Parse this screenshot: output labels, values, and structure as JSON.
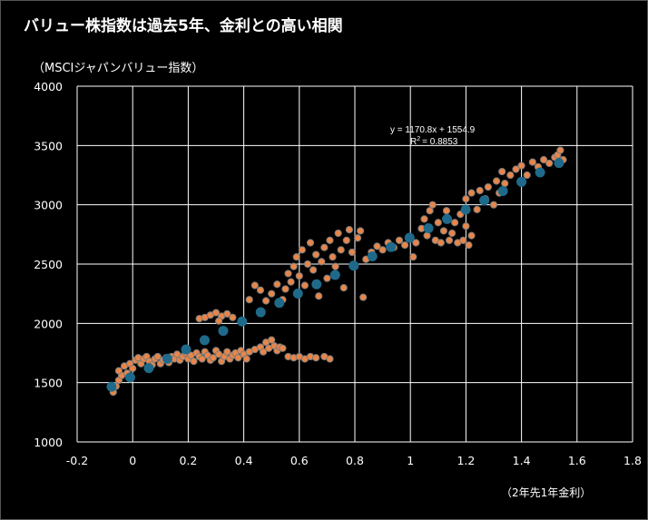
{
  "chart_data": {
    "type": "scatter",
    "title": "バリュー株指数は過去5年、金利との高い相関",
    "ylabel": "（MSCIジャパンバリュー指数）",
    "xlabel": "（2年先1年金利）",
    "xlim": [
      -0.2,
      1.8
    ],
    "ylim": [
      1000,
      4000
    ],
    "xticks": [
      "-0.2",
      "0",
      "0.2",
      "0.4",
      "0.6",
      "0.8",
      "1",
      "1.2",
      "1.4",
      "1.6",
      "1.8"
    ],
    "yticks": [
      "1000",
      "1500",
      "2000",
      "2500",
      "3000",
      "3500",
      "4000"
    ],
    "grid": true,
    "trendline": {
      "equation": "y = 1170.8x + 1554.9",
      "r2_label": "R",
      "r2_value": "= 0.8853",
      "slope": 1170.8,
      "intercept": 1554.9
    },
    "colors": {
      "observed": "#e8864a",
      "observed_edge": "#7a7a7a",
      "fitted": "#1f6a8a",
      "grid": "#ffffff"
    },
    "series": [
      {
        "kind": "observed",
        "points": [
          [
            -0.07,
            1420
          ],
          [
            -0.06,
            1470
          ],
          [
            -0.05,
            1520
          ],
          [
            -0.04,
            1560
          ],
          [
            -0.05,
            1600
          ],
          [
            -0.03,
            1640
          ],
          [
            -0.02,
            1580
          ],
          [
            -0.01,
            1660
          ],
          [
            0.0,
            1620
          ],
          [
            0.01,
            1690
          ],
          [
            0.02,
            1710
          ],
          [
            0.03,
            1660
          ],
          [
            0.04,
            1700
          ],
          [
            0.05,
            1720
          ],
          [
            0.06,
            1680
          ],
          [
            0.07,
            1650
          ],
          [
            0.08,
            1700
          ],
          [
            0.09,
            1720
          ],
          [
            0.1,
            1660
          ],
          [
            0.11,
            1690
          ],
          [
            0.12,
            1710
          ],
          [
            0.13,
            1670
          ],
          [
            0.14,
            1720
          ],
          [
            0.15,
            1700
          ],
          [
            0.16,
            1740
          ],
          [
            0.17,
            1690
          ],
          [
            0.18,
            1720
          ],
          [
            0.19,
            1750
          ],
          [
            0.2,
            1700
          ],
          [
            0.21,
            1730
          ],
          [
            0.22,
            1680
          ],
          [
            0.23,
            1750
          ],
          [
            0.24,
            1720
          ],
          [
            0.25,
            1700
          ],
          [
            0.26,
            1760
          ],
          [
            0.27,
            1730
          ],
          [
            0.28,
            1690
          ],
          [
            0.29,
            1710
          ],
          [
            0.3,
            1770
          ],
          [
            0.31,
            1740
          ],
          [
            0.32,
            1680
          ],
          [
            0.33,
            1720
          ],
          [
            0.34,
            1760
          ],
          [
            0.35,
            1700
          ],
          [
            0.36,
            1730
          ],
          [
            0.37,
            1750
          ],
          [
            0.38,
            1710
          ],
          [
            0.39,
            1770
          ],
          [
            0.4,
            1740
          ],
          [
            0.41,
            1700
          ],
          [
            0.42,
            1760
          ],
          [
            0.44,
            1780
          ],
          [
            0.46,
            1800
          ],
          [
            0.47,
            1760
          ],
          [
            0.48,
            1840
          ],
          [
            0.49,
            1790
          ],
          [
            0.5,
            1860
          ],
          [
            0.51,
            1810
          ],
          [
            0.52,
            1770
          ],
          [
            0.53,
            1800
          ],
          [
            0.54,
            1790
          ],
          [
            0.56,
            1720
          ],
          [
            0.58,
            1710
          ],
          [
            0.6,
            1720
          ],
          [
            0.62,
            1700
          ],
          [
            0.64,
            1720
          ],
          [
            0.66,
            1710
          ],
          [
            0.69,
            1720
          ],
          [
            0.71,
            1700
          ],
          [
            0.24,
            2040
          ],
          [
            0.26,
            2050
          ],
          [
            0.28,
            2070
          ],
          [
            0.3,
            2090
          ],
          [
            0.32,
            2060
          ],
          [
            0.34,
            2080
          ],
          [
            0.36,
            2050
          ],
          [
            0.31,
            2020
          ],
          [
            0.42,
            2200
          ],
          [
            0.44,
            2320
          ],
          [
            0.46,
            2280
          ],
          [
            0.48,
            2190
          ],
          [
            0.5,
            2250
          ],
          [
            0.52,
            2330
          ],
          [
            0.54,
            2200
          ],
          [
            0.55,
            2290
          ],
          [
            0.56,
            2420
          ],
          [
            0.57,
            2350
          ],
          [
            0.58,
            2480
          ],
          [
            0.59,
            2560
          ],
          [
            0.6,
            2400
          ],
          [
            0.61,
            2620
          ],
          [
            0.62,
            2320
          ],
          [
            0.63,
            2500
          ],
          [
            0.64,
            2680
          ],
          [
            0.65,
            2450
          ],
          [
            0.66,
            2580
          ],
          [
            0.67,
            2230
          ],
          [
            0.68,
            2520
          ],
          [
            0.69,
            2640
          ],
          [
            0.7,
            2380
          ],
          [
            0.71,
            2700
          ],
          [
            0.72,
            2560
          ],
          [
            0.73,
            2480
          ],
          [
            0.74,
            2760
          ],
          [
            0.75,
            2620
          ],
          [
            0.76,
            2300
          ],
          [
            0.77,
            2700
          ],
          [
            0.78,
            2790
          ],
          [
            0.79,
            2600
          ],
          [
            0.8,
            2480
          ],
          [
            0.81,
            2720
          ],
          [
            0.82,
            2780
          ],
          [
            0.83,
            2220
          ],
          [
            0.84,
            2540
          ],
          [
            0.86,
            2600
          ],
          [
            0.88,
            2650
          ],
          [
            0.9,
            2620
          ],
          [
            0.92,
            2680
          ],
          [
            0.94,
            2640
          ],
          [
            0.96,
            2700
          ],
          [
            0.98,
            2660
          ],
          [
            1.0,
            2720
          ],
          [
            1.01,
            2560
          ],
          [
            1.02,
            2680
          ],
          [
            1.04,
            2800
          ],
          [
            1.05,
            2880
          ],
          [
            1.06,
            2740
          ],
          [
            1.07,
            2950
          ],
          [
            1.08,
            3000
          ],
          [
            1.09,
            2700
          ],
          [
            1.1,
            2850
          ],
          [
            1.11,
            2680
          ],
          [
            1.12,
            2780
          ],
          [
            1.13,
            2950
          ],
          [
            1.14,
            2700
          ],
          [
            1.15,
            2760
          ],
          [
            1.16,
            2850
          ],
          [
            1.17,
            2680
          ],
          [
            1.18,
            2920
          ],
          [
            1.19,
            2700
          ],
          [
            1.2,
            2820
          ],
          [
            1.21,
            2660
          ],
          [
            1.22,
            2740
          ],
          [
            1.2,
            3050
          ],
          [
            1.22,
            3100
          ],
          [
            1.24,
            2960
          ],
          [
            1.25,
            3120
          ],
          [
            1.27,
            3050
          ],
          [
            1.28,
            3150
          ],
          [
            1.3,
            3000
          ],
          [
            1.31,
            3200
          ],
          [
            1.32,
            3100
          ],
          [
            1.33,
            3280
          ],
          [
            1.34,
            3180
          ],
          [
            1.36,
            3250
          ],
          [
            1.38,
            3300
          ],
          [
            1.4,
            3330
          ],
          [
            1.42,
            3250
          ],
          [
            1.44,
            3360
          ],
          [
            1.46,
            3320
          ],
          [
            1.48,
            3380
          ],
          [
            1.5,
            3350
          ],
          [
            1.52,
            3400
          ],
          [
            1.53,
            3420
          ],
          [
            1.54,
            3460
          ],
          [
            1.55,
            3380
          ]
        ]
      },
      {
        "kind": "fitted",
        "points": [
          [
            -0.076,
            1466
          ],
          [
            -0.009,
            1544
          ],
          [
            0.058,
            1623
          ],
          [
            0.125,
            1701
          ],
          [
            0.192,
            1780
          ],
          [
            0.259,
            1858
          ],
          [
            0.326,
            1937
          ],
          [
            0.394,
            2016
          ],
          [
            0.461,
            2094
          ],
          [
            0.528,
            2173
          ],
          [
            0.595,
            2251
          ],
          [
            0.662,
            2330
          ],
          [
            0.729,
            2408
          ],
          [
            0.796,
            2487
          ],
          [
            0.863,
            2565
          ],
          [
            0.93,
            2644
          ],
          [
            0.997,
            2722
          ],
          [
            1.065,
            2802
          ],
          [
            1.132,
            2880
          ],
          [
            1.199,
            2959
          ],
          [
            1.266,
            3037
          ],
          [
            1.333,
            3116
          ],
          [
            1.4,
            3194
          ],
          [
            1.467,
            3273
          ],
          [
            1.535,
            3352
          ]
        ]
      }
    ]
  }
}
